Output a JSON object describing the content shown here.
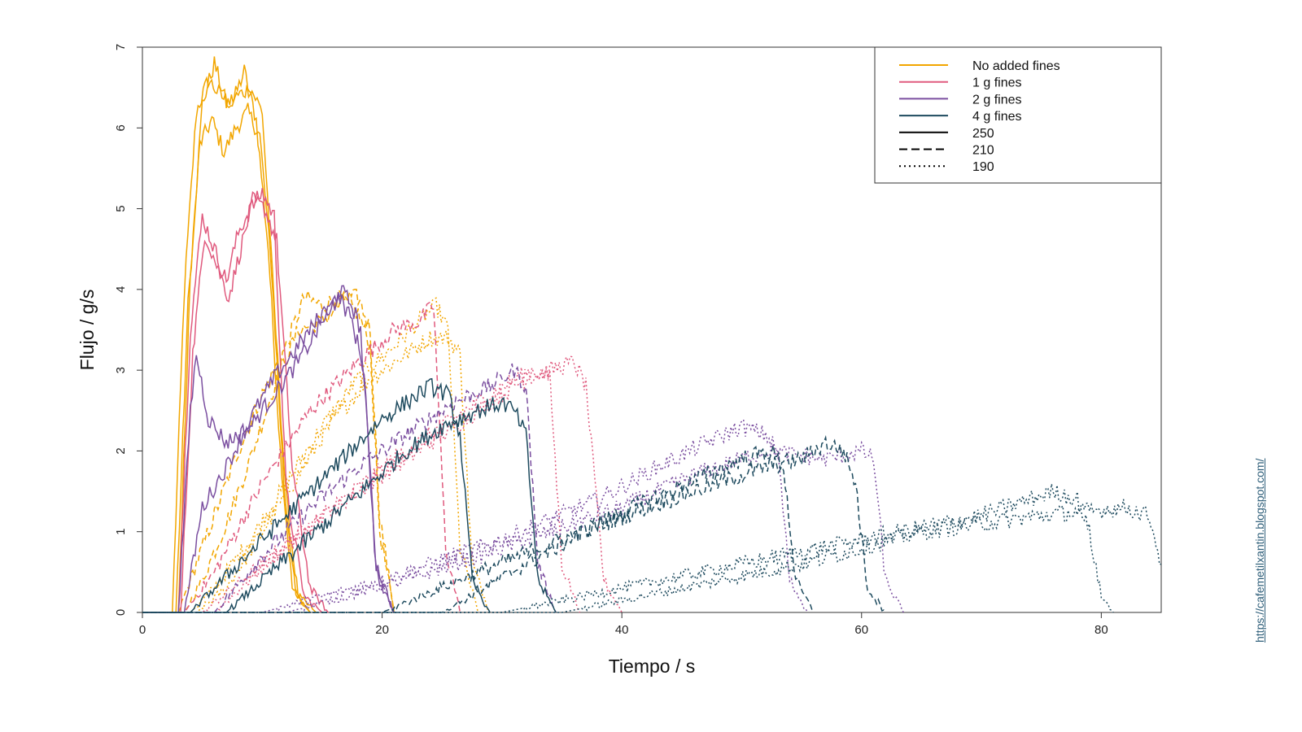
{
  "source_link": "https://cafemetilxantin.blogspot.com/",
  "chart_data": {
    "type": "line",
    "title": "",
    "xlabel": "Tiempo / s",
    "ylabel": "Flujo / g/s",
    "xlim": [
      0,
      85
    ],
    "ylim": [
      0,
      7
    ],
    "xticks": [
      0,
      20,
      40,
      60,
      80
    ],
    "yticks": [
      0,
      1,
      2,
      3,
      4,
      5,
      6,
      7
    ],
    "grid": false,
    "legend_position": "top-right",
    "colors": {
      "No added fines": "#f2a600",
      "1 g fines": "#e05a7e",
      "2 g fines": "#7b4fa0",
      "4 g fines": "#1d4a5e"
    },
    "legend": [
      {
        "label": "No added fines",
        "color": "#f2a600",
        "dash": "solid"
      },
      {
        "label": "1 g fines",
        "color": "#e05a7e",
        "dash": "solid"
      },
      {
        "label": "2 g fines",
        "color": "#7b4fa0",
        "dash": "solid"
      },
      {
        "label": "4 g fines",
        "color": "#1d4a5e",
        "dash": "solid"
      },
      {
        "label": "250",
        "color": "#000000",
        "dash": "solid"
      },
      {
        "label": "210",
        "color": "#000000",
        "dash": "dashed"
      },
      {
        "label": "190",
        "color": "#000000",
        "dash": "dotted"
      }
    ],
    "series": [
      {
        "group": "No added fines",
        "style": "solid",
        "x": [
          0,
          2.5,
          3.5,
          4.5,
          5.5,
          6.5,
          7.5,
          8.5,
          9.5,
          10.5,
          11.5,
          12.5,
          14
        ],
        "y": [
          0,
          0,
          4.0,
          6.2,
          6.6,
          6.4,
          6.3,
          6.7,
          6.1,
          4.5,
          2.0,
          0.3,
          0
        ]
      },
      {
        "group": "No added fines",
        "style": "solid",
        "x": [
          0,
          2.8,
          3.8,
          4.8,
          5.8,
          6.8,
          7.8,
          8.8,
          9.8,
          10.8,
          11.8,
          12.8,
          14
        ],
        "y": [
          0,
          0,
          3.8,
          5.8,
          6.1,
          5.7,
          6.0,
          6.2,
          5.9,
          4.2,
          1.6,
          0.2,
          0
        ]
      },
      {
        "group": "No added fines",
        "style": "solid",
        "x": [
          0,
          3.0,
          4.0,
          5.0,
          6.0,
          7.0,
          8.0,
          9.0,
          10.0,
          11.0,
          12.0,
          13.0,
          14.5
        ],
        "y": [
          0,
          0,
          4.2,
          6.3,
          6.8,
          6.3,
          6.4,
          6.5,
          6.2,
          3.8,
          1.4,
          0.2,
          0
        ]
      },
      {
        "group": "No added fines",
        "style": "dashed",
        "x": [
          0,
          3.0,
          4.5,
          6,
          8,
          10,
          12,
          13.5,
          15,
          16.5,
          18,
          19,
          19.8,
          21
        ],
        "y": [
          0,
          0,
          0.6,
          1.2,
          2.0,
          2.7,
          3.3,
          3.9,
          3.8,
          3.9,
          3.7,
          3.3,
          1.0,
          0
        ]
      },
      {
        "group": "No added fines",
        "style": "dashed",
        "x": [
          0,
          3.5,
          5,
          7,
          9,
          11,
          13,
          15,
          17,
          18,
          19,
          19.8,
          21
        ],
        "y": [
          0,
          0,
          0.4,
          1.1,
          1.9,
          2.8,
          3.5,
          3.6,
          3.9,
          3.9,
          3.5,
          1.2,
          0
        ]
      },
      {
        "group": "No added fines",
        "style": "dotted",
        "x": [
          0,
          4,
          6,
          9,
          12,
          15,
          18,
          21,
          23,
          24.5,
          25.5,
          26.5,
          28
        ],
        "y": [
          0,
          0,
          0.3,
          0.9,
          1.6,
          2.3,
          2.9,
          3.3,
          3.6,
          3.8,
          3.5,
          0.8,
          0
        ]
      },
      {
        "group": "No added fines",
        "style": "dotted",
        "x": [
          0,
          4.5,
          7,
          10,
          13,
          16,
          19,
          22,
          24,
          25.5,
          26.5,
          27.5,
          29
        ],
        "y": [
          0,
          0,
          0.3,
          1.0,
          1.7,
          2.4,
          2.9,
          3.2,
          3.4,
          3.4,
          3.2,
          0.6,
          0
        ]
      },
      {
        "group": "1 g fines",
        "style": "solid",
        "x": [
          0,
          3.0,
          4.0,
          5.0,
          6.0,
          7.0,
          8.0,
          9.0,
          10.0,
          11.0,
          12.0,
          13.5,
          15
        ],
        "y": [
          0,
          0,
          3.5,
          4.9,
          4.5,
          4.1,
          4.7,
          5.0,
          5.2,
          4.9,
          1.5,
          0.2,
          0
        ]
      },
      {
        "group": "1 g fines",
        "style": "solid",
        "x": [
          0,
          3.2,
          4.2,
          5.2,
          6.2,
          7.2,
          8.2,
          9.2,
          10.2,
          11.2,
          12.5,
          14,
          15.5
        ],
        "y": [
          0,
          0,
          3.2,
          4.7,
          4.3,
          3.9,
          4.5,
          5.1,
          5.0,
          4.6,
          1.8,
          0.3,
          0
        ]
      },
      {
        "group": "1 g fines",
        "style": "dashed",
        "x": [
          0,
          3.5,
          6,
          10,
          14,
          18,
          21,
          23,
          24.3,
          25.3,
          26.5
        ],
        "y": [
          0,
          0,
          0.5,
          1.6,
          2.5,
          3.1,
          3.5,
          3.6,
          3.8,
          0.8,
          0
        ]
      },
      {
        "group": "1 g fines",
        "style": "dotted",
        "x": [
          0,
          5,
          10,
          15,
          20,
          25,
          29,
          32,
          34,
          36,
          37,
          38.5,
          40
        ],
        "y": [
          0,
          0,
          0.6,
          1.2,
          1.7,
          2.2,
          2.6,
          2.9,
          3.0,
          3.1,
          2.8,
          0.4,
          0
        ]
      },
      {
        "group": "1 g fines",
        "style": "dotted",
        "x": [
          0,
          6,
          11,
          16,
          21,
          26,
          30,
          32.5,
          34,
          35,
          36.5
        ],
        "y": [
          0,
          0,
          0.7,
          1.3,
          1.9,
          2.4,
          2.8,
          3.0,
          2.9,
          0.6,
          0
        ]
      },
      {
        "group": "2 g fines",
        "style": "solid",
        "x": [
          0,
          3.0,
          4.0,
          4.5,
          5.5,
          7,
          9,
          11,
          13,
          15,
          16.5,
          17.5,
          18.2,
          19.5,
          21
        ],
        "y": [
          0,
          0,
          2.5,
          3.2,
          2.4,
          2.1,
          2.3,
          2.7,
          3.1,
          3.6,
          4.0,
          3.8,
          3.5,
          0.6,
          0
        ]
      },
      {
        "group": "2 g fines",
        "style": "solid",
        "x": [
          0,
          3.5,
          5,
          7,
          9,
          11,
          13,
          15,
          16.5,
          17.5,
          18.5,
          19.5,
          21
        ],
        "y": [
          0,
          0,
          1.3,
          1.8,
          2.4,
          2.9,
          3.3,
          3.7,
          3.9,
          3.6,
          3.0,
          0.5,
          0
        ]
      },
      {
        "group": "2 g fines",
        "style": "dashed",
        "x": [
          0,
          6,
          10,
          14,
          18,
          22,
          26,
          29,
          31,
          32,
          33,
          34.5
        ],
        "y": [
          0,
          0,
          0.7,
          1.3,
          1.8,
          2.2,
          2.6,
          2.8,
          3.0,
          2.8,
          0.6,
          0
        ]
      },
      {
        "group": "2 g fines",
        "style": "dotted",
        "x": [
          0,
          10,
          20,
          30,
          38,
          43,
          47,
          50,
          52,
          53,
          54,
          55.5
        ],
        "y": [
          0,
          0,
          0.4,
          0.9,
          1.4,
          1.8,
          2.1,
          2.3,
          2.2,
          2.0,
          0.4,
          0
        ]
      },
      {
        "group": "2 g fines",
        "style": "dotted",
        "x": [
          0,
          12,
          22,
          32,
          40,
          46,
          52,
          57,
          60,
          61,
          62,
          63.5
        ],
        "y": [
          0,
          0,
          0.4,
          0.9,
          1.3,
          1.7,
          2.0,
          1.9,
          2.0,
          1.9,
          0.4,
          0
        ]
      },
      {
        "group": "4 g fines",
        "style": "solid",
        "x": [
          0,
          4,
          6,
          8,
          10,
          12,
          14,
          16,
          18,
          20,
          22,
          24,
          25.5,
          26.5,
          27.5,
          29
        ],
        "y": [
          0,
          0,
          0.3,
          0.6,
          0.9,
          1.2,
          1.5,
          1.8,
          2.1,
          2.4,
          2.6,
          2.8,
          2.7,
          2.2,
          0.4,
          0
        ]
      },
      {
        "group": "4 g fines",
        "style": "solid",
        "x": [
          0,
          7,
          10,
          13,
          16,
          19,
          22,
          25,
          28,
          30,
          31,
          32,
          33,
          34.5
        ],
        "y": [
          0,
          0,
          0.4,
          0.8,
          1.2,
          1.6,
          2.0,
          2.3,
          2.5,
          2.6,
          2.5,
          2.2,
          0.4,
          0
        ]
      },
      {
        "group": "4 g fines",
        "style": "dashed",
        "x": [
          0,
          20,
          28,
          35,
          42,
          48,
          52,
          55,
          57,
          58.5,
          59.5,
          60.5,
          62
        ],
        "y": [
          0,
          0,
          0.5,
          0.9,
          1.3,
          1.6,
          1.8,
          1.9,
          2.1,
          2.0,
          1.6,
          0.3,
          0
        ]
      },
      {
        "group": "4 g fines",
        "style": "dashed",
        "x": [
          0,
          25,
          32,
          38,
          44,
          50,
          52.5,
          53.5,
          54.5,
          56
        ],
        "y": [
          0,
          0,
          0.6,
          1.1,
          1.5,
          1.9,
          2.0,
          1.8,
          0.4,
          0
        ]
      },
      {
        "group": "4 g fines",
        "style": "dotted",
        "x": [
          0,
          30,
          40,
          50,
          60,
          70,
          76,
          78,
          79,
          80,
          81
        ],
        "y": [
          0,
          0,
          0.3,
          0.6,
          0.9,
          1.2,
          1.5,
          1.4,
          1.0,
          0.2,
          0
        ]
      },
      {
        "group": "4 g fines",
        "style": "dotted",
        "x": [
          0,
          35,
          45,
          55,
          65,
          75,
          82,
          84,
          85
        ],
        "y": [
          0,
          0,
          0.3,
          0.6,
          1.0,
          1.2,
          1.3,
          1.2,
          0.6
        ]
      }
    ]
  }
}
